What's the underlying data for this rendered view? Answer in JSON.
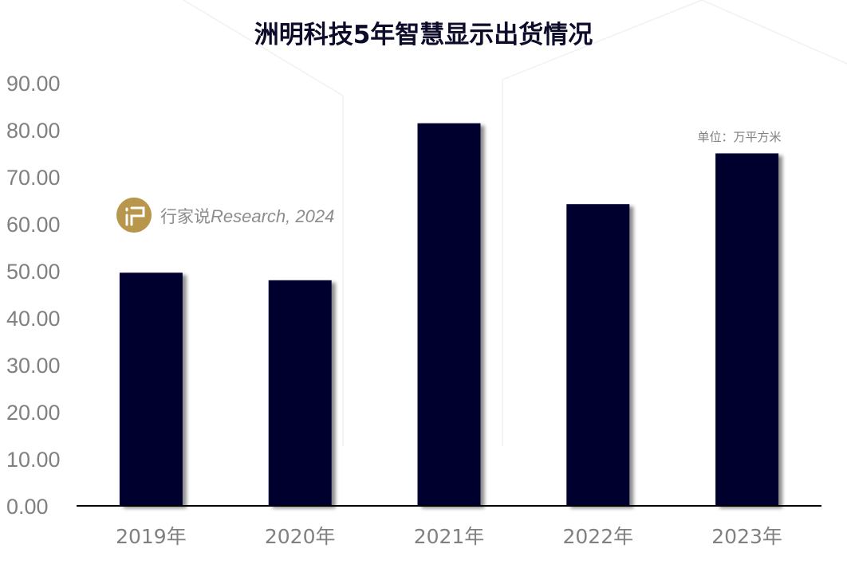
{
  "chart_data": {
    "type": "bar",
    "title": "洲明科技5年智慧显示出货情况",
    "unit_label": "单位：万平方米",
    "categories": [
      "2019年",
      "2020年",
      "2021年",
      "2022年",
      "2023年"
    ],
    "values": [
      49.6,
      48.0,
      81.4,
      64.2,
      75.0
    ],
    "ylim": [
      0,
      90
    ],
    "yticks": [
      "0.00",
      "10.00",
      "20.00",
      "30.00",
      "40.00",
      "50.00",
      "60.00",
      "70.00",
      "80.00",
      "90.00"
    ],
    "grid": false,
    "bar_color": "#02022e",
    "axis_color": "#000000"
  },
  "watermark": {
    "brand_cn": "行家说",
    "brand_en": "Research, 2024",
    "logo_color": "#b8964c"
  }
}
